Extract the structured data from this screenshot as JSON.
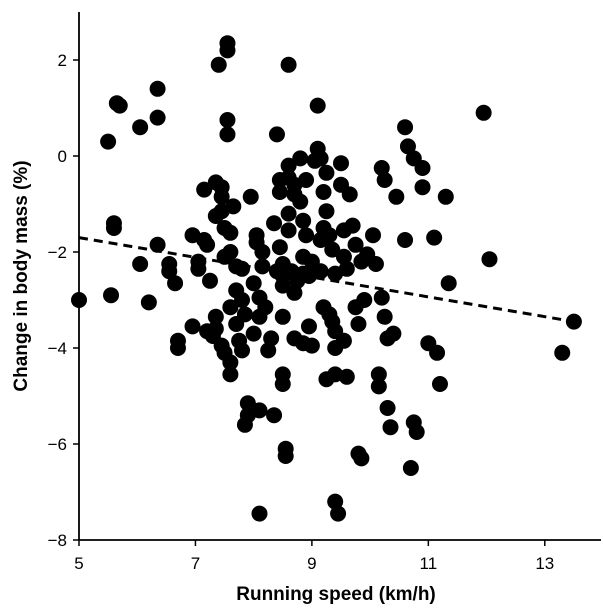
{
  "chart_data": {
    "type": "scatter",
    "title": "",
    "xlabel": "Running speed (km/h)",
    "ylabel": "Change in body mass (%)",
    "xlim": [
      5,
      14
    ],
    "ylim": [
      -8,
      3
    ],
    "xticks": [
      5,
      7,
      9,
      11,
      13
    ],
    "yticks": [
      2,
      0,
      -2,
      -4,
      -6,
      -8
    ],
    "xtick_labels": [
      "5",
      "7",
      "9",
      "11",
      "13"
    ],
    "ytick_labels": [
      "2",
      "0",
      "−2",
      "−4",
      "−6",
      "−8"
    ],
    "grid": false,
    "legend": "none",
    "marker_color": "#000000",
    "trendline": {
      "style": "dashed",
      "x": [
        5.0,
        13.5
      ],
      "y": [
        -1.7,
        -3.45
      ]
    },
    "points": [
      [
        5.0,
        -3.0
      ],
      [
        5.5,
        0.3
      ],
      [
        5.55,
        -2.9
      ],
      [
        5.6,
        -1.4
      ],
      [
        5.65,
        1.1
      ],
      [
        5.7,
        1.05
      ],
      [
        5.6,
        -1.5
      ],
      [
        6.05,
        0.6
      ],
      [
        6.05,
        -2.25
      ],
      [
        6.2,
        -3.05
      ],
      [
        6.35,
        1.4
      ],
      [
        6.35,
        0.8
      ],
      [
        6.35,
        -1.85
      ],
      [
        6.55,
        -2.25
      ],
      [
        6.55,
        -2.4
      ],
      [
        6.65,
        -2.65
      ],
      [
        6.7,
        -3.85
      ],
      [
        6.7,
        -4.0
      ],
      [
        6.95,
        -1.65
      ],
      [
        6.95,
        -3.55
      ],
      [
        7.05,
        -2.2
      ],
      [
        7.05,
        -2.35
      ],
      [
        7.15,
        -0.7
      ],
      [
        7.15,
        -1.75
      ],
      [
        7.2,
        -1.85
      ],
      [
        7.25,
        -2.6
      ],
      [
        7.2,
        -3.65
      ],
      [
        7.3,
        -3.75
      ],
      [
        7.35,
        -0.55
      ],
      [
        7.35,
        -1.25
      ],
      [
        7.35,
        -3.35
      ],
      [
        7.35,
        -3.6
      ],
      [
        7.4,
        1.9
      ],
      [
        7.45,
        -0.65
      ],
      [
        7.45,
        -0.85
      ],
      [
        7.45,
        -1.15
      ],
      [
        7.5,
        -1.5
      ],
      [
        7.5,
        -2.1
      ],
      [
        7.45,
        -3.95
      ],
      [
        7.5,
        -4.1
      ],
      [
        7.55,
        2.2
      ],
      [
        7.55,
        2.35
      ],
      [
        7.55,
        0.75
      ],
      [
        7.55,
        0.45
      ],
      [
        7.6,
        -1.6
      ],
      [
        7.6,
        -2.0
      ],
      [
        7.6,
        -3.15
      ],
      [
        7.6,
        -4.3
      ],
      [
        7.6,
        -4.55
      ],
      [
        7.65,
        -1.05
      ],
      [
        7.7,
        -2.3
      ],
      [
        7.7,
        -2.8
      ],
      [
        7.7,
        -3.5
      ],
      [
        7.75,
        -3.85
      ],
      [
        7.8,
        -4.05
      ],
      [
        7.8,
        -2.35
      ],
      [
        7.8,
        -3.0
      ],
      [
        7.85,
        -3.3
      ],
      [
        7.85,
        -5.6
      ],
      [
        7.9,
        -5.15
      ],
      [
        7.9,
        -5.4
      ],
      [
        7.95,
        -0.85
      ],
      [
        8.0,
        -2.65
      ],
      [
        8.0,
        -3.7
      ],
      [
        8.05,
        -1.65
      ],
      [
        8.05,
        -1.8
      ],
      [
        8.1,
        -2.95
      ],
      [
        8.1,
        -3.35
      ],
      [
        8.1,
        -5.3
      ],
      [
        8.1,
        -7.45
      ],
      [
        8.15,
        -2.0
      ],
      [
        8.15,
        -2.3
      ],
      [
        8.2,
        -3.15
      ],
      [
        8.25,
        -4.05
      ],
      [
        8.3,
        -3.8
      ],
      [
        8.35,
        -1.4
      ],
      [
        8.35,
        -5.4
      ],
      [
        8.4,
        0.45
      ],
      [
        8.4,
        -2.4
      ],
      [
        8.45,
        -0.5
      ],
      [
        8.45,
        -0.75
      ],
      [
        8.45,
        -1.9
      ],
      [
        8.5,
        -2.25
      ],
      [
        8.5,
        -2.5
      ],
      [
        8.5,
        -2.7
      ],
      [
        8.5,
        -3.35
      ],
      [
        8.5,
        -4.55
      ],
      [
        8.5,
        -4.75
      ],
      [
        8.55,
        -6.1
      ],
      [
        8.55,
        -6.25
      ],
      [
        8.6,
        1.9
      ],
      [
        8.6,
        -0.2
      ],
      [
        8.6,
        -0.45
      ],
      [
        8.6,
        -1.2
      ],
      [
        8.6,
        -1.55
      ],
      [
        8.65,
        -2.4
      ],
      [
        8.7,
        -0.6
      ],
      [
        8.7,
        -0.8
      ],
      [
        8.7,
        -2.85
      ],
      [
        8.7,
        -3.8
      ],
      [
        8.75,
        -2.6
      ],
      [
        8.8,
        -0.05
      ],
      [
        8.8,
        -0.95
      ],
      [
        8.85,
        -1.35
      ],
      [
        8.85,
        -2.1
      ],
      [
        8.85,
        -2.45
      ],
      [
        8.85,
        -3.9
      ],
      [
        8.9,
        -0.5
      ],
      [
        8.9,
        -1.65
      ],
      [
        8.95,
        -2.5
      ],
      [
        8.95,
        -3.55
      ],
      [
        9.0,
        -2.2
      ],
      [
        9.0,
        -3.95
      ],
      [
        9.05,
        -0.1
      ],
      [
        9.1,
        1.05
      ],
      [
        9.1,
        0.15
      ],
      [
        9.15,
        -0.05
      ],
      [
        9.15,
        -2.4
      ],
      [
        9.15,
        -1.75
      ],
      [
        9.2,
        -0.75
      ],
      [
        9.2,
        -1.5
      ],
      [
        9.2,
        -3.15
      ],
      [
        9.25,
        -0.35
      ],
      [
        9.25,
        -1.15
      ],
      [
        9.25,
        -4.65
      ],
      [
        9.3,
        -1.65
      ],
      [
        9.3,
        -3.3
      ],
      [
        9.35,
        -1.95
      ],
      [
        9.35,
        -3.45
      ],
      [
        9.4,
        -2.45
      ],
      [
        9.4,
        -3.65
      ],
      [
        9.4,
        -4.0
      ],
      [
        9.4,
        -4.55
      ],
      [
        9.4,
        -7.2
      ],
      [
        9.45,
        -7.45
      ],
      [
        9.5,
        -0.15
      ],
      [
        9.5,
        -0.6
      ],
      [
        9.55,
        -1.55
      ],
      [
        9.55,
        -2.1
      ],
      [
        9.55,
        -3.85
      ],
      [
        9.6,
        -2.35
      ],
      [
        9.6,
        -4.6
      ],
      [
        9.65,
        -0.8
      ],
      [
        9.7,
        -1.45
      ],
      [
        9.75,
        -1.85
      ],
      [
        9.75,
        -3.15
      ],
      [
        9.8,
        -3.5
      ],
      [
        9.8,
        -6.2
      ],
      [
        9.85,
        -6.3
      ],
      [
        9.85,
        -2.2
      ],
      [
        9.9,
        -3.0
      ],
      [
        9.95,
        -2.05
      ],
      [
        10.05,
        -1.65
      ],
      [
        10.1,
        -2.25
      ],
      [
        10.15,
        -4.55
      ],
      [
        10.15,
        -4.8
      ],
      [
        10.2,
        -0.25
      ],
      [
        10.2,
        -2.95
      ],
      [
        10.25,
        -0.5
      ],
      [
        10.25,
        -3.35
      ],
      [
        10.3,
        -3.8
      ],
      [
        10.3,
        -5.25
      ],
      [
        10.35,
        -5.65
      ],
      [
        10.4,
        -3.7
      ],
      [
        10.45,
        -0.85
      ],
      [
        10.6,
        -1.75
      ],
      [
        10.6,
        0.6
      ],
      [
        10.65,
        0.2
      ],
      [
        10.75,
        -0.05
      ],
      [
        10.7,
        -6.5
      ],
      [
        10.75,
        -5.55
      ],
      [
        10.8,
        -5.75
      ],
      [
        10.9,
        -0.25
      ],
      [
        10.9,
        -0.65
      ],
      [
        11.0,
        -3.9
      ],
      [
        11.1,
        -1.7
      ],
      [
        11.15,
        -4.1
      ],
      [
        11.2,
        -4.75
      ],
      [
        11.3,
        -0.85
      ],
      [
        11.35,
        -2.65
      ],
      [
        11.95,
        0.9
      ],
      [
        12.05,
        -2.15
      ],
      [
        13.3,
        -4.1
      ],
      [
        13.5,
        -3.45
      ]
    ]
  }
}
